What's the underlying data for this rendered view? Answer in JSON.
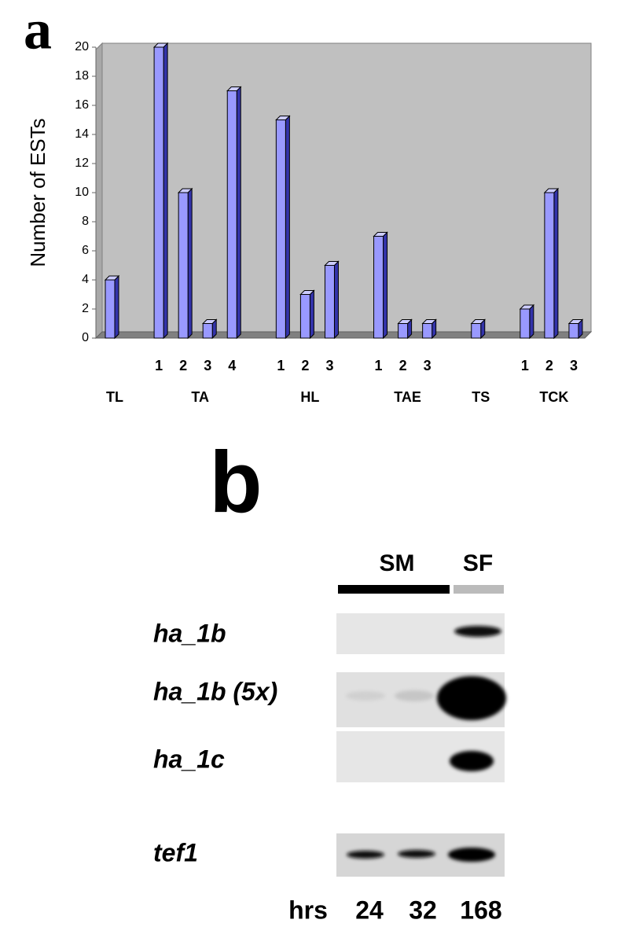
{
  "chart_data": {
    "type": "bar",
    "panel_label": "a",
    "ylabel": "Number of ESTs",
    "categories": [
      null,
      null,
      "1",
      "2",
      "3",
      "4",
      null,
      "1",
      "2",
      "3",
      null,
      "1",
      "2",
      "3",
      null,
      null,
      null,
      "1",
      "2",
      "3"
    ],
    "values": [
      4,
      null,
      20,
      10,
      1,
      17,
      null,
      15,
      3,
      5,
      null,
      7,
      1,
      1,
      null,
      1,
      null,
      2,
      10,
      1
    ],
    "groups": [
      {
        "name": "TL",
        "span": [
          0,
          0
        ]
      },
      {
        "name": "TA",
        "span": [
          2,
          5
        ]
      },
      {
        "name": "HL",
        "span": [
          7,
          9
        ]
      },
      {
        "name": "TAE",
        "span": [
          11,
          13
        ]
      },
      {
        "name": "TS",
        "span": [
          15,
          15
        ]
      },
      {
        "name": "TCK",
        "span": [
          17,
          19
        ]
      }
    ],
    "color": "#9999ff",
    "ylim": [
      0,
      20
    ],
    "yticks": [
      0,
      2,
      4,
      6,
      8,
      10,
      12,
      14,
      16,
      18,
      20
    ]
  },
  "gel": {
    "panel_label": "b",
    "conditions": [
      "SM",
      "SF"
    ],
    "rows": [
      "ha_1b",
      "ha_1b (5x)",
      "ha_1c",
      "tef1"
    ],
    "time_label": "hrs",
    "times": [
      "24",
      "32",
      "168"
    ]
  }
}
